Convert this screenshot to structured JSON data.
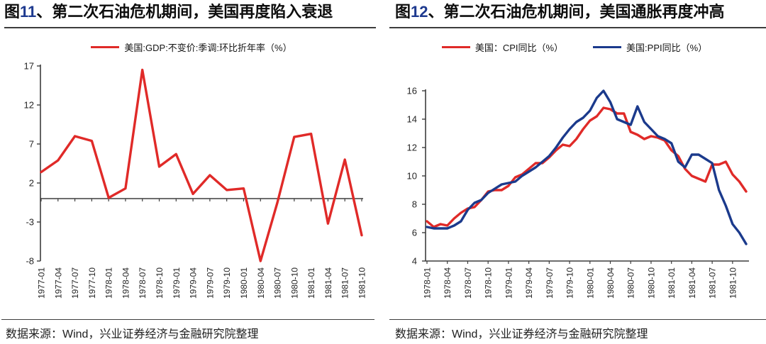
{
  "source_note": "数据来源：Wind，兴业证券经济与金融研究院整理",
  "colors": {
    "axis": "#3d3d3d",
    "tick_text": "#262626",
    "red": "#e02a28",
    "navy": "#1b3a8c",
    "title_num_blue": "#1e3a8f"
  },
  "chart_data": [
    {
      "type": "line",
      "title_fig": "图",
      "title_num": "11",
      "title_rest": "、第二次石油危机期间，美国再度陷入衰退",
      "legend_position": "top-center",
      "grid": false,
      "ylim": [
        -8,
        17
      ],
      "yticks": [
        17,
        12,
        7,
        2,
        -3,
        -8
      ],
      "x_axis_value": 0,
      "x_tick_every": 1,
      "categories": [
        "1977-01",
        "1977-04",
        "1977-07",
        "1977-10",
        "1978-01",
        "1978-04",
        "1978-07",
        "1978-10",
        "1979-01",
        "1979-04",
        "1979-07",
        "1979-10",
        "1980-01",
        "1980-04",
        "1980-07",
        "1980-10",
        "1981-01",
        "1981-04",
        "1981-07",
        "1981-10"
      ],
      "series": [
        {
          "name": "美国:GDP:不变价:季调:环比折年率（%）",
          "color": "#e02a28",
          "values": [
            3.4,
            4.9,
            8.0,
            7.4,
            0.1,
            1.3,
            16.5,
            4.1,
            5.7,
            0.6,
            3.0,
            1.1,
            1.3,
            -8.0,
            -0.5,
            7.9,
            8.3,
            -3.2,
            5.0,
            -4.7
          ]
        }
      ]
    },
    {
      "type": "line",
      "title_fig": "图",
      "title_num": "12",
      "title_rest": "、第二次石油危机期间，美国通胀再度冲高",
      "legend_position": "top-center",
      "grid": false,
      "ylim": [
        4,
        16
      ],
      "yticks": [
        16,
        14,
        12,
        10,
        8,
        6,
        4
      ],
      "x_axis_value": 4,
      "x_tick_every": 3,
      "categories": [
        "1978-01",
        "1978-02",
        "1978-03",
        "1978-04",
        "1978-05",
        "1978-06",
        "1978-07",
        "1978-08",
        "1978-09",
        "1978-10",
        "1978-11",
        "1978-12",
        "1979-01",
        "1979-02",
        "1979-03",
        "1979-04",
        "1979-05",
        "1979-06",
        "1979-07",
        "1979-08",
        "1979-09",
        "1979-10",
        "1979-11",
        "1979-12",
        "1980-01",
        "1980-02",
        "1980-03",
        "1980-04",
        "1980-05",
        "1980-06",
        "1980-07",
        "1980-08",
        "1980-09",
        "1980-10",
        "1980-11",
        "1980-12",
        "1981-01",
        "1981-02",
        "1981-03",
        "1981-04",
        "1981-05",
        "1981-06",
        "1981-07",
        "1981-08",
        "1981-09",
        "1981-10",
        "1981-11",
        "1981-12"
      ],
      "series": [
        {
          "name": "美国：CPI同比（%）",
          "color": "#e02a28",
          "values": [
            6.8,
            6.4,
            6.6,
            6.5,
            7.0,
            7.4,
            7.7,
            7.8,
            8.3,
            8.9,
            9.0,
            9.0,
            9.3,
            9.9,
            10.1,
            10.5,
            10.9,
            10.9,
            11.3,
            11.8,
            12.2,
            12.1,
            12.6,
            13.3,
            13.9,
            14.2,
            14.8,
            14.7,
            14.4,
            14.4,
            13.1,
            12.9,
            12.6,
            12.8,
            12.7,
            12.5,
            11.8,
            11.4,
            10.5,
            10.0,
            9.8,
            9.6,
            10.8,
            10.8,
            11.0,
            10.1,
            9.6,
            8.9
          ]
        },
        {
          "name": "美国:PPI同比（%）",
          "color": "#1b3a8c",
          "values": [
            6.4,
            6.3,
            6.3,
            6.3,
            6.5,
            6.8,
            7.6,
            8.1,
            8.3,
            8.8,
            9.1,
            9.4,
            9.5,
            9.6,
            10.0,
            10.3,
            10.6,
            11.0,
            11.4,
            12.0,
            12.7,
            13.3,
            13.8,
            14.1,
            14.6,
            15.5,
            16.0,
            15.2,
            14.0,
            13.8,
            13.6,
            14.9,
            13.8,
            13.3,
            12.8,
            12.6,
            12.3,
            11.0,
            10.6,
            11.5,
            11.5,
            11.2,
            10.9,
            9.0,
            7.9,
            6.6,
            6.0,
            5.2
          ]
        }
      ]
    }
  ]
}
